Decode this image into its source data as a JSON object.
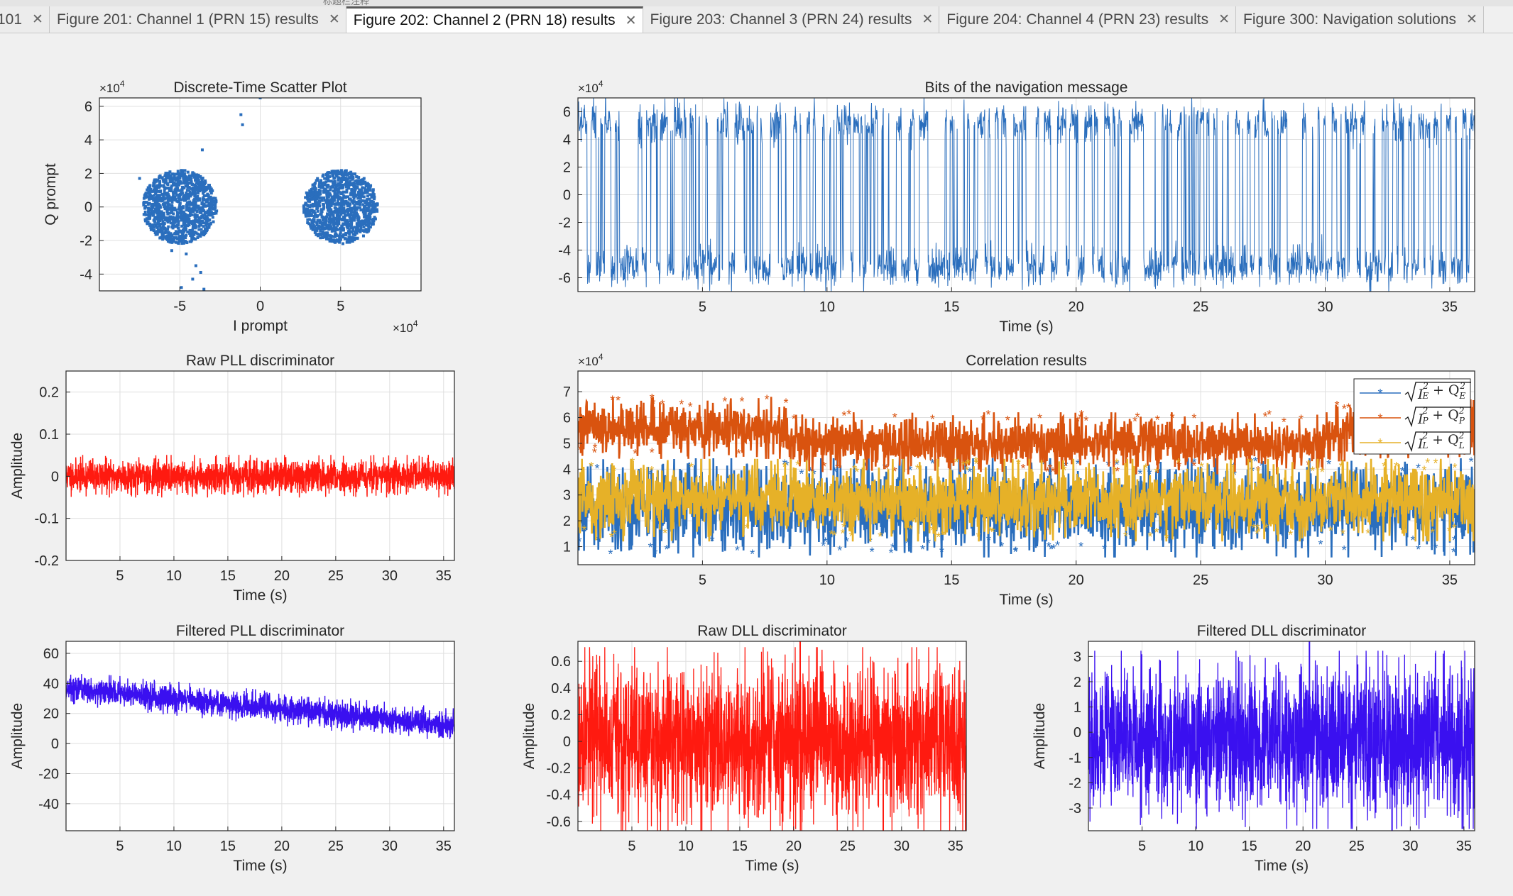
{
  "tabs": [
    {
      "label": "101",
      "active": false
    },
    {
      "label": "Figure 201: Channel 1 (PRN 15) results",
      "active": false
    },
    {
      "label": "Figure 202: Channel 2 (PRN 18) results",
      "active": true
    },
    {
      "label": "Figure 203: Channel 3 (PRN 24) results",
      "active": false
    },
    {
      "label": "Figure 204: Channel 4 (PRN 23) results",
      "active": false
    },
    {
      "label": "Figure 300: Navigation solutions",
      "active": false
    }
  ],
  "top_text": "标题栏注释",
  "colors": {
    "background": "#f0f0f0",
    "axes_bg": "#ffffff",
    "grid": "#dfdfdf",
    "blue": "#2a6ebd",
    "red": "#ff1a10",
    "purple": "#3a10f0",
    "orange": "#d9530f",
    "yellow": "#e6b128"
  },
  "chart_data": [
    {
      "id": "scatter",
      "type": "scatter",
      "title": "Discrete-Time Scatter Plot",
      "xlabel": "I prompt",
      "ylabel": "Q prompt",
      "x_exponent": "×10",
      "y_exponent": "×10",
      "exponent_power": "4",
      "xlim": [
        -10,
        10
      ],
      "ylim": [
        -5,
        6.5
      ],
      "xticks": [
        -5,
        0,
        5
      ],
      "yticks": [
        -4,
        -2,
        0,
        2,
        4,
        6
      ],
      "grid": true,
      "clusters": [
        {
          "center_x": -5,
          "center_y": 0,
          "spread": 1.1,
          "points": 1100
        },
        {
          "center_x": 5,
          "center_y": 0,
          "spread": 1.1,
          "points": 1100
        }
      ],
      "outliers": [
        {
          "x": 0,
          "y": 6.5
        },
        {
          "x": -1.2,
          "y": 5.5
        },
        {
          "x": -1.1,
          "y": 4.9
        },
        {
          "x": -3.6,
          "y": 3.4
        },
        {
          "x": -7.5,
          "y": 1.7
        },
        {
          "x": -4.6,
          "y": -2.8
        },
        {
          "x": -4.0,
          "y": -3.5
        },
        {
          "x": -3.7,
          "y": -3.9
        },
        {
          "x": -4.2,
          "y": -4.3
        },
        {
          "x": -5.5,
          "y": -2.6
        },
        {
          "x": -3.5,
          "y": -4.9
        },
        {
          "x": -4.9,
          "y": -4.8
        }
      ],
      "color": "#2a6ebd"
    },
    {
      "id": "navbits",
      "type": "line",
      "title": "Bits of the navigation message",
      "xlabel": "Time (s)",
      "ylabel": "",
      "y_exponent": "×10",
      "exponent_power": "4",
      "xlim": [
        0,
        36
      ],
      "ylim": [
        -7,
        7
      ],
      "xticks": [
        5,
        10,
        15,
        20,
        25,
        30,
        35
      ],
      "yticks": [
        -6,
        -4,
        -2,
        0,
        2,
        4,
        6
      ],
      "grid": true,
      "amplitude": 5.2,
      "noise": 0.7,
      "color": "#2a6ebd"
    },
    {
      "id": "rawpll",
      "type": "line",
      "title": "Raw PLL discriminator",
      "xlabel": "Time (s)",
      "ylabel": "Amplitude",
      "xlim": [
        0,
        36
      ],
      "ylim": [
        -0.2,
        0.25
      ],
      "xticks": [
        5,
        10,
        15,
        20,
        25,
        30,
        35
      ],
      "yticks": [
        -0.2,
        -0.1,
        0,
        0.1,
        0.2
      ],
      "ytick_labels": [
        "-0.2",
        "-0.1",
        "0",
        "0.1",
        "0.2"
      ],
      "grid": true,
      "mean": 0,
      "band": 0.035,
      "spike_max": 0.09,
      "spike_min": -0.07,
      "color": "#ff1a10"
    },
    {
      "id": "corr",
      "type": "line",
      "title": "Correlation results",
      "xlabel": "Time (s)",
      "ylabel": "",
      "y_exponent": "×10",
      "exponent_power": "4",
      "xlim": [
        0,
        36
      ],
      "ylim": [
        0.3,
        7.8
      ],
      "xticks": [
        5,
        10,
        15,
        20,
        25,
        30,
        35
      ],
      "yticks": [
        1,
        2,
        3,
        4,
        5,
        6,
        7
      ],
      "grid": true,
      "legend_position": "top-right",
      "series": [
        {
          "name_base": "I",
          "sub": "E",
          "color": "#2a6ebd",
          "mean": 2.5,
          "band": 1.2
        },
        {
          "name_base": "I",
          "sub": "P",
          "color": "#d9530f",
          "segments": [
            {
              "x0": 0,
              "x1": 8.4,
              "mean": 5.6
            },
            {
              "x0": 8.4,
              "x1": 30.2,
              "mean": 5.0
            },
            {
              "x0": 30.2,
              "x1": 36,
              "mean": 5.5
            }
          ],
          "band": 0.75
        },
        {
          "name_base": "I",
          "sub": "L",
          "color": "#e6b128",
          "mean": 2.8,
          "band": 1.0
        }
      ]
    },
    {
      "id": "filtpll",
      "type": "line",
      "title": "Filtered PLL discriminator",
      "xlabel": "Time (s)",
      "ylabel": "Amplitude",
      "xlim": [
        0,
        36
      ],
      "ylim": [
        -58,
        68
      ],
      "xticks": [
        5,
        10,
        15,
        20,
        25,
        30,
        35
      ],
      "yticks": [
        -40,
        -20,
        0,
        20,
        40,
        60
      ],
      "grid": true,
      "start_value": 37,
      "end_value": 12,
      "band": 7,
      "color": "#3a10f0"
    },
    {
      "id": "rawdll",
      "type": "line",
      "title": "Raw DLL discriminator",
      "xlabel": "Time (s)",
      "ylabel": "Amplitude",
      "xlim": [
        0,
        36
      ],
      "ylim": [
        -0.67,
        0.75
      ],
      "xticks": [
        5,
        10,
        15,
        20,
        25,
        30,
        35
      ],
      "yticks": [
        -0.6,
        -0.4,
        -0.2,
        0,
        0.2,
        0.4,
        0.6
      ],
      "ytick_labels": [
        "-0.6",
        "-0.4",
        "-0.2",
        "0",
        "0.2",
        "0.4",
        "0.6"
      ],
      "grid": true,
      "mean": 0,
      "band": 0.38,
      "spikes": [
        {
          "x": 20.6,
          "y": 0.75
        },
        {
          "x": 28.3,
          "y": -0.67
        }
      ],
      "color": "#ff1a10"
    },
    {
      "id": "filtdll",
      "type": "line",
      "title": "Filtered DLL discriminator",
      "xlabel": "Time (s)",
      "ylabel": "Amplitude",
      "xlim": [
        0,
        36
      ],
      "ylim": [
        -3.9,
        3.6
      ],
      "xticks": [
        5,
        10,
        15,
        20,
        25,
        30,
        35
      ],
      "yticks": [
        -3,
        -2,
        -1,
        0,
        1,
        2,
        3
      ],
      "grid": true,
      "mean": -0.3,
      "band": 1.9,
      "spikes": [
        {
          "x": 20.6,
          "y": 3.6
        },
        {
          "x": 28.3,
          "y": -3.9
        }
      ],
      "color": "#3a10f0"
    }
  ]
}
